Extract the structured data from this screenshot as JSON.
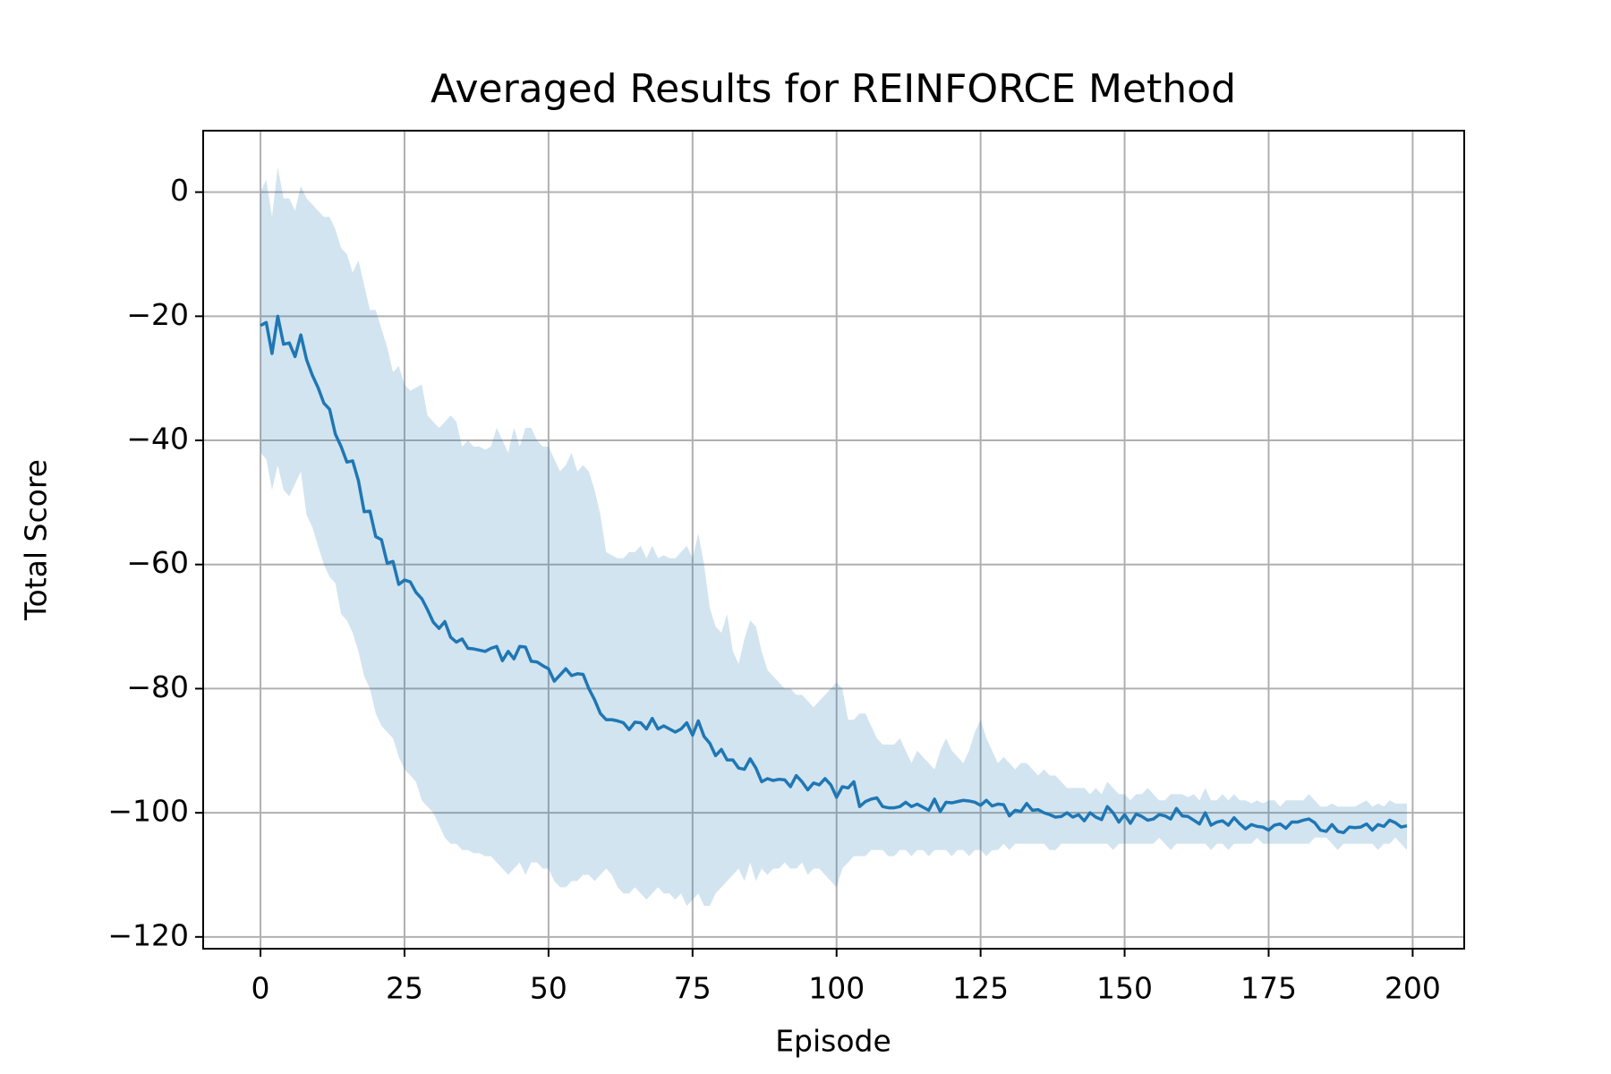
{
  "chart_data": {
    "type": "line",
    "title": "Averaged Results for REINFORCE Method",
    "x_label": "Episode",
    "y_label": "Total Score",
    "x": [
      0,
      1,
      2,
      3,
      4,
      5,
      6,
      7,
      8,
      9,
      10,
      11,
      12,
      13,
      14,
      15,
      16,
      17,
      18,
      19,
      20,
      21,
      22,
      23,
      24,
      25,
      26,
      27,
      28,
      29,
      30,
      31,
      32,
      33,
      34,
      35,
      36,
      37,
      38,
      39,
      40,
      41,
      42,
      43,
      44,
      45,
      46,
      47,
      48,
      49,
      50,
      51,
      52,
      53,
      54,
      55,
      56,
      57,
      58,
      59,
      60,
      61,
      62,
      63,
      64,
      65,
      66,
      67,
      68,
      69,
      70,
      71,
      72,
      73,
      74,
      75,
      76,
      77,
      78,
      79,
      80,
      81,
      82,
      83,
      84,
      85,
      86,
      87,
      88,
      89,
      90,
      91,
      92,
      93,
      94,
      95,
      96,
      97,
      98,
      99,
      100,
      101,
      102,
      103,
      104,
      105,
      106,
      107,
      108,
      109,
      110,
      111,
      112,
      113,
      114,
      115,
      116,
      117,
      118,
      119,
      120,
      121,
      122,
      123,
      124,
      125,
      126,
      127,
      128,
      129,
      130,
      131,
      132,
      133,
      134,
      135,
      136,
      137,
      138,
      139,
      140,
      141,
      142,
      143,
      144,
      145,
      146,
      147,
      148,
      149,
      150,
      151,
      152,
      153,
      154,
      155,
      156,
      157,
      158,
      159,
      160,
      161,
      162,
      163,
      164,
      165,
      166,
      167,
      168,
      169,
      170,
      171,
      172,
      173,
      174,
      175,
      176,
      177,
      178,
      179,
      180,
      181,
      182,
      183,
      184,
      185,
      186,
      187,
      188,
      189,
      190,
      191,
      192,
      193,
      194,
      195,
      196,
      197,
      198,
      199
    ],
    "series": [
      {
        "color": "#1f77b4",
        "band_opacity": 0.2,
        "values": [
          -21.5,
          -21,
          -26,
          -20,
          -24.5,
          -24.3,
          -26.5,
          -23,
          -27,
          -29.5,
          -31.5,
          -34,
          -35,
          -39,
          -41,
          -43.5,
          -43.3,
          -46.5,
          -51.5,
          -51.4,
          -55.5,
          -56,
          -59.8,
          -59.5,
          -63.2,
          -62.5,
          -62.8,
          -64.5,
          -65.5,
          -67.3,
          -69.3,
          -70.3,
          -69.2,
          -71.7,
          -72.5,
          -72,
          -73.5,
          -73.6,
          -73.8,
          -74,
          -73.5,
          -73.2,
          -75.5,
          -74,
          -75.2,
          -73.2,
          -73.3,
          -75.6,
          -75.7,
          -76.3,
          -76.8,
          -78.8,
          -77.8,
          -76.8,
          -77.9,
          -77.6,
          -77.7,
          -80,
          -81.8,
          -84,
          -85,
          -85,
          -85.2,
          -85.5,
          -86.6,
          -85.4,
          -85.5,
          -86.5,
          -84.8,
          -86.5,
          -86,
          -86.5,
          -87,
          -86.5,
          -85.5,
          -87.5,
          -85.2,
          -87.7,
          -88.8,
          -90.8,
          -89.8,
          -91.5,
          -91.5,
          -92.8,
          -93,
          -91.3,
          -92.8,
          -95,
          -94.5,
          -94.8,
          -94.6,
          -94.7,
          -95.8,
          -94,
          -95,
          -96.3,
          -95.2,
          -95.5,
          -94.5,
          -95.5,
          -97.5,
          -95.8,
          -96,
          -95,
          -99,
          -98.2,
          -97.8,
          -97.6,
          -99,
          -99.2,
          -99.2,
          -99,
          -98.3,
          -99,
          -98.6,
          -99.1,
          -99.6,
          -97.8,
          -99.8,
          -98.3,
          -98.4,
          -98.2,
          -98,
          -98.1,
          -98.3,
          -98.8,
          -98,
          -98.9,
          -98.6,
          -98.7,
          -100.5,
          -99.6,
          -99.8,
          -98.5,
          -99.6,
          -99.5,
          -100,
          -100.3,
          -100.7,
          -100.6,
          -100,
          -100.7,
          -100.3,
          -101.3,
          -100,
          -100.7,
          -101.1,
          -99,
          -100,
          -101.5,
          -100.3,
          -101.7,
          -100.2,
          -100.6,
          -101.2,
          -101,
          -100.3,
          -100.5,
          -101,
          -99.3,
          -100.5,
          -100.6,
          -101.2,
          -101.8,
          -100,
          -102,
          -101.5,
          -101.3,
          -102,
          -100.8,
          -101.8,
          -102.6,
          -101.9,
          -102.2,
          -102.3,
          -102.8,
          -102,
          -101.8,
          -102.5,
          -101.5,
          -101.5,
          -101.2,
          -101,
          -101.6,
          -102.8,
          -103,
          -101.9,
          -103,
          -103.2,
          -102.3,
          -102.4,
          -102.3,
          -101.8,
          -102.8,
          -101.9,
          -102.2,
          -101.2,
          -101.6,
          -102.3,
          -102.1
        ],
        "upper": [
          0,
          2,
          -4,
          4,
          -1,
          -1,
          -3,
          1,
          -1,
          -2,
          -3,
          -4,
          -4,
          -6,
          -9,
          -10,
          -13,
          -11,
          -15,
          -19,
          -19,
          -22,
          -25,
          -29,
          -28,
          -31,
          -32,
          -31.5,
          -31,
          -36,
          -37,
          -38,
          -37,
          -36,
          -37,
          -41,
          -40,
          -41,
          -41,
          -41.5,
          -41,
          -38,
          -40,
          -42,
          -38,
          -41,
          -38,
          -38,
          -40,
          -41,
          -41,
          -43,
          -45,
          -44,
          -42,
          -45,
          -44,
          -45,
          -48,
          -52,
          -58,
          -58.5,
          -59,
          -59,
          -58,
          -58,
          -57,
          -59,
          -57,
          -59,
          -58.5,
          -59,
          -59,
          -58,
          -57,
          -59,
          -55,
          -60,
          -67,
          -70,
          -71,
          -68,
          -74,
          -76,
          -72,
          -69,
          -70,
          -74,
          -77,
          -78,
          -79,
          -80,
          -80,
          -81,
          -81,
          -82,
          -83,
          -82,
          -81,
          -80,
          -79,
          -80,
          -85,
          -85,
          -84,
          -84,
          -86,
          -88,
          -89,
          -89,
          -89,
          -88,
          -90,
          -92,
          -90,
          -91,
          -92,
          -93,
          -90,
          -88,
          -90,
          -91,
          -92,
          -90,
          -87,
          -85,
          -88,
          -90,
          -92,
          -91,
          -92,
          -93,
          -92,
          -92,
          -93,
          -94,
          -93,
          -94,
          -94,
          -95,
          -96,
          -96,
          -96,
          -96,
          -97,
          -96,
          -97,
          -95,
          -96,
          -97,
          -97,
          -98,
          -97,
          -97,
          -96,
          -97,
          -98,
          -98,
          -97,
          -97,
          -97,
          -97.5,
          -97,
          -98,
          -96,
          -98,
          -98,
          -97,
          -98,
          -97,
          -98,
          -98,
          -98.5,
          -98,
          -98.5,
          -98,
          -98,
          -99,
          -98,
          -98,
          -98,
          -98,
          -97,
          -98,
          -99,
          -99,
          -98.5,
          -99,
          -99,
          -99,
          -99,
          -98.5,
          -98,
          -99,
          -98.5,
          -99,
          -98,
          -98.5,
          -98.5,
          -98.5
        ],
        "lower": [
          -42,
          -43,
          -48,
          -44,
          -48,
          -49,
          -47,
          -45,
          -52,
          -54,
          -57,
          -60,
          -62,
          -63,
          -68,
          -69,
          -71,
          -74,
          -78,
          -80,
          -84,
          -86,
          -87,
          -88,
          -91,
          -93,
          -94,
          -95,
          -98,
          -99,
          -100,
          -102,
          -104,
          -105,
          -105,
          -106,
          -106,
          -106.5,
          -106.5,
          -107,
          -107,
          -108,
          -109,
          -110,
          -109,
          -108,
          -110,
          -108,
          -108,
          -109,
          -109,
          -111,
          -112,
          -112,
          -111,
          -111,
          -110,
          -110,
          -111,
          -110,
          -109,
          -110,
          -112,
          -113,
          -113,
          -112,
          -113,
          -114,
          -113,
          -112,
          -113,
          -113,
          -114,
          -113,
          -115,
          -114,
          -113,
          -115,
          -115,
          -113,
          -112,
          -111,
          -110,
          -109,
          -111,
          -108,
          -111,
          -109,
          -110,
          -109,
          -109,
          -108,
          -109,
          -109,
          -108,
          -110,
          -109,
          -109,
          -110,
          -111,
          -112,
          -109,
          -108,
          -107,
          -107,
          -107,
          -106,
          -106,
          -106,
          -107,
          -107,
          -106,
          -106,
          -107,
          -106,
          -106,
          -107,
          -106,
          -106,
          -106,
          -107,
          -106,
          -106,
          -107,
          -106,
          -106,
          -107,
          -106,
          -106,
          -105,
          -106,
          -105,
          -105,
          -105,
          -105,
          -105,
          -105,
          -106,
          -106,
          -105,
          -105,
          -105,
          -105,
          -105,
          -105,
          -105,
          -105,
          -105,
          -106,
          -105,
          -105,
          -105,
          -105,
          -105,
          -105,
          -105,
          -104,
          -105,
          -106,
          -105,
          -105,
          -105,
          -105,
          -105,
          -105,
          -106,
          -105,
          -105,
          -106,
          -105,
          -105,
          -105,
          -105,
          -104,
          -105,
          -105,
          -105,
          -105,
          -105,
          -105,
          -105,
          -105,
          -105,
          -104,
          -104,
          -104,
          -105,
          -106,
          -105,
          -105,
          -105,
          -105,
          -105,
          -105,
          -106,
          -105,
          -105,
          -104,
          -105,
          -106
        ]
      }
    ],
    "xlim": [
      -9.95,
      208.95
    ],
    "ylim": [
      -121.9,
      9.9
    ],
    "xticks": [
      0,
      25,
      50,
      75,
      100,
      125,
      150,
      175,
      200
    ],
    "yticks": [
      {
        "value": -120,
        "label": "−120"
      },
      {
        "value": -100,
        "label": "−100"
      },
      {
        "value": -80,
        "label": "−80"
      },
      {
        "value": -60,
        "label": "−60"
      },
      {
        "value": -40,
        "label": "−40"
      },
      {
        "value": -20,
        "label": "−20"
      },
      0
    ],
    "grid": true
  }
}
